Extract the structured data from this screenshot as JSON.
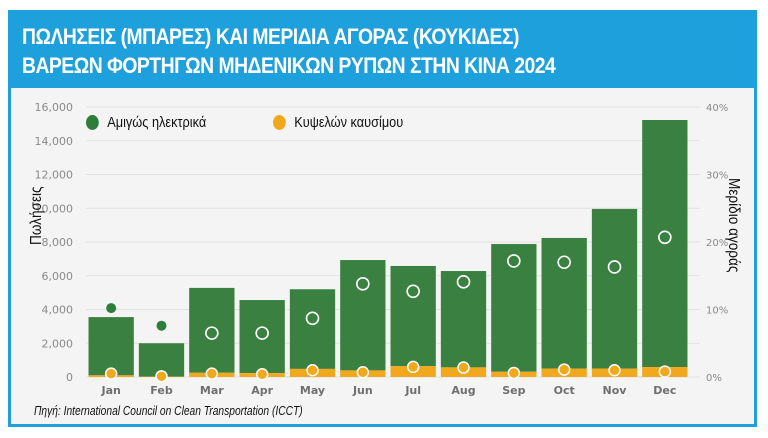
{
  "header": {
    "title_line1": "ΠΩΛΗΣΕΙΣ (ΜΠΑΡΕΣ) ΚΑΙ ΜΕΡΙΔΙΑ ΑΓΟΡΑΣ (ΚΟΥΚΙΔΕΣ)",
    "title_line2": "ΒΑΡΕΩΝ ΦΟΡΤΗΓΩΝ ΜΗΔΕΝΙΚΩΝ ΡΥΠΩΝ ΣΤΗΝ ΚΙΝΑ 2024"
  },
  "source": "Πηγή: International Council on Clean Transportation (ICCT)",
  "colors": {
    "frame": "#1ea0dc",
    "electric": "#3a8040",
    "electric_dot": "#2e7d3a",
    "fuel_cell": "#f2a81d",
    "grid": "#e2e2e2",
    "tick_text": "#8a8a8a"
  },
  "chart_data": {
    "type": "bar",
    "stacked": true,
    "title": "ΠΩΛΗΣΕΙΣ (ΜΠΑΡΕΣ) ΚΑΙ ΜΕΡΙΔΙΑ ΑΓΟΡΑΣ (ΚΟΥΚΙΔΕΣ) ΒΑΡΕΩΝ ΦΟΡΤΗΓΩΝ ΜΗΔΕΝΙΚΩΝ ΡΥΠΩΝ ΣΤΗΝ ΚΙΝΑ 2024",
    "categories": [
      "Jan",
      "Feb",
      "Mar",
      "Apr",
      "May",
      "Jun",
      "Jul",
      "Aug",
      "Sep",
      "Oct",
      "Nov",
      "Dec"
    ],
    "ylabel": "Πωλήσεις",
    "y2label": "Μερίδιο αγοράς",
    "ylim": [
      0,
      16000
    ],
    "y2lim": [
      0,
      40
    ],
    "yticks": [
      "0",
      "2,000",
      "4,000",
      "6,000",
      "8,000",
      "10,000",
      "12,000",
      "14,000",
      "16,000"
    ],
    "yticks_values": [
      0,
      2000,
      4000,
      6000,
      8000,
      10000,
      12000,
      14000,
      16000
    ],
    "y2ticks": [
      "0%",
      "10%",
      "20%",
      "30%",
      "40%"
    ],
    "y2ticks_values": [
      0,
      10,
      20,
      30,
      40
    ],
    "grid": true,
    "legend_position": "top-left",
    "series": [
      {
        "name": "Κυψελών καυσίμου",
        "kind": "bar",
        "values": [
          100,
          30,
          250,
          230,
          480,
          390,
          640,
          570,
          310,
          500,
          500,
          590
        ]
      },
      {
        "name": "Αμιγώς ηλεκτρικά",
        "kind": "bar",
        "values": [
          3450,
          1970,
          5030,
          4330,
          4720,
          6540,
          5940,
          5710,
          7570,
          7740,
          9460,
          14640
        ]
      },
      {
        "name": "Αμιγώς ηλεκτρικά (μερίδιο)",
        "kind": "point",
        "axis": "right",
        "values": [
          10.2,
          7.6,
          6.5,
          6.5,
          8.7,
          13.8,
          12.7,
          14.1,
          17.2,
          17.0,
          16.3,
          20.7
        ]
      },
      {
        "name": "Κυψελών καυσίμου (μερίδιο)",
        "kind": "point",
        "axis": "right",
        "values": [
          0.5,
          0.1,
          0.5,
          0.4,
          1.0,
          0.7,
          1.5,
          1.4,
          0.6,
          1.1,
          1.0,
          0.8
        ]
      }
    ]
  },
  "legend": {
    "electric": "Αμιγώς ηλεκτρικά",
    "fuel_cell": "Κυψελών καυσίμου"
  }
}
